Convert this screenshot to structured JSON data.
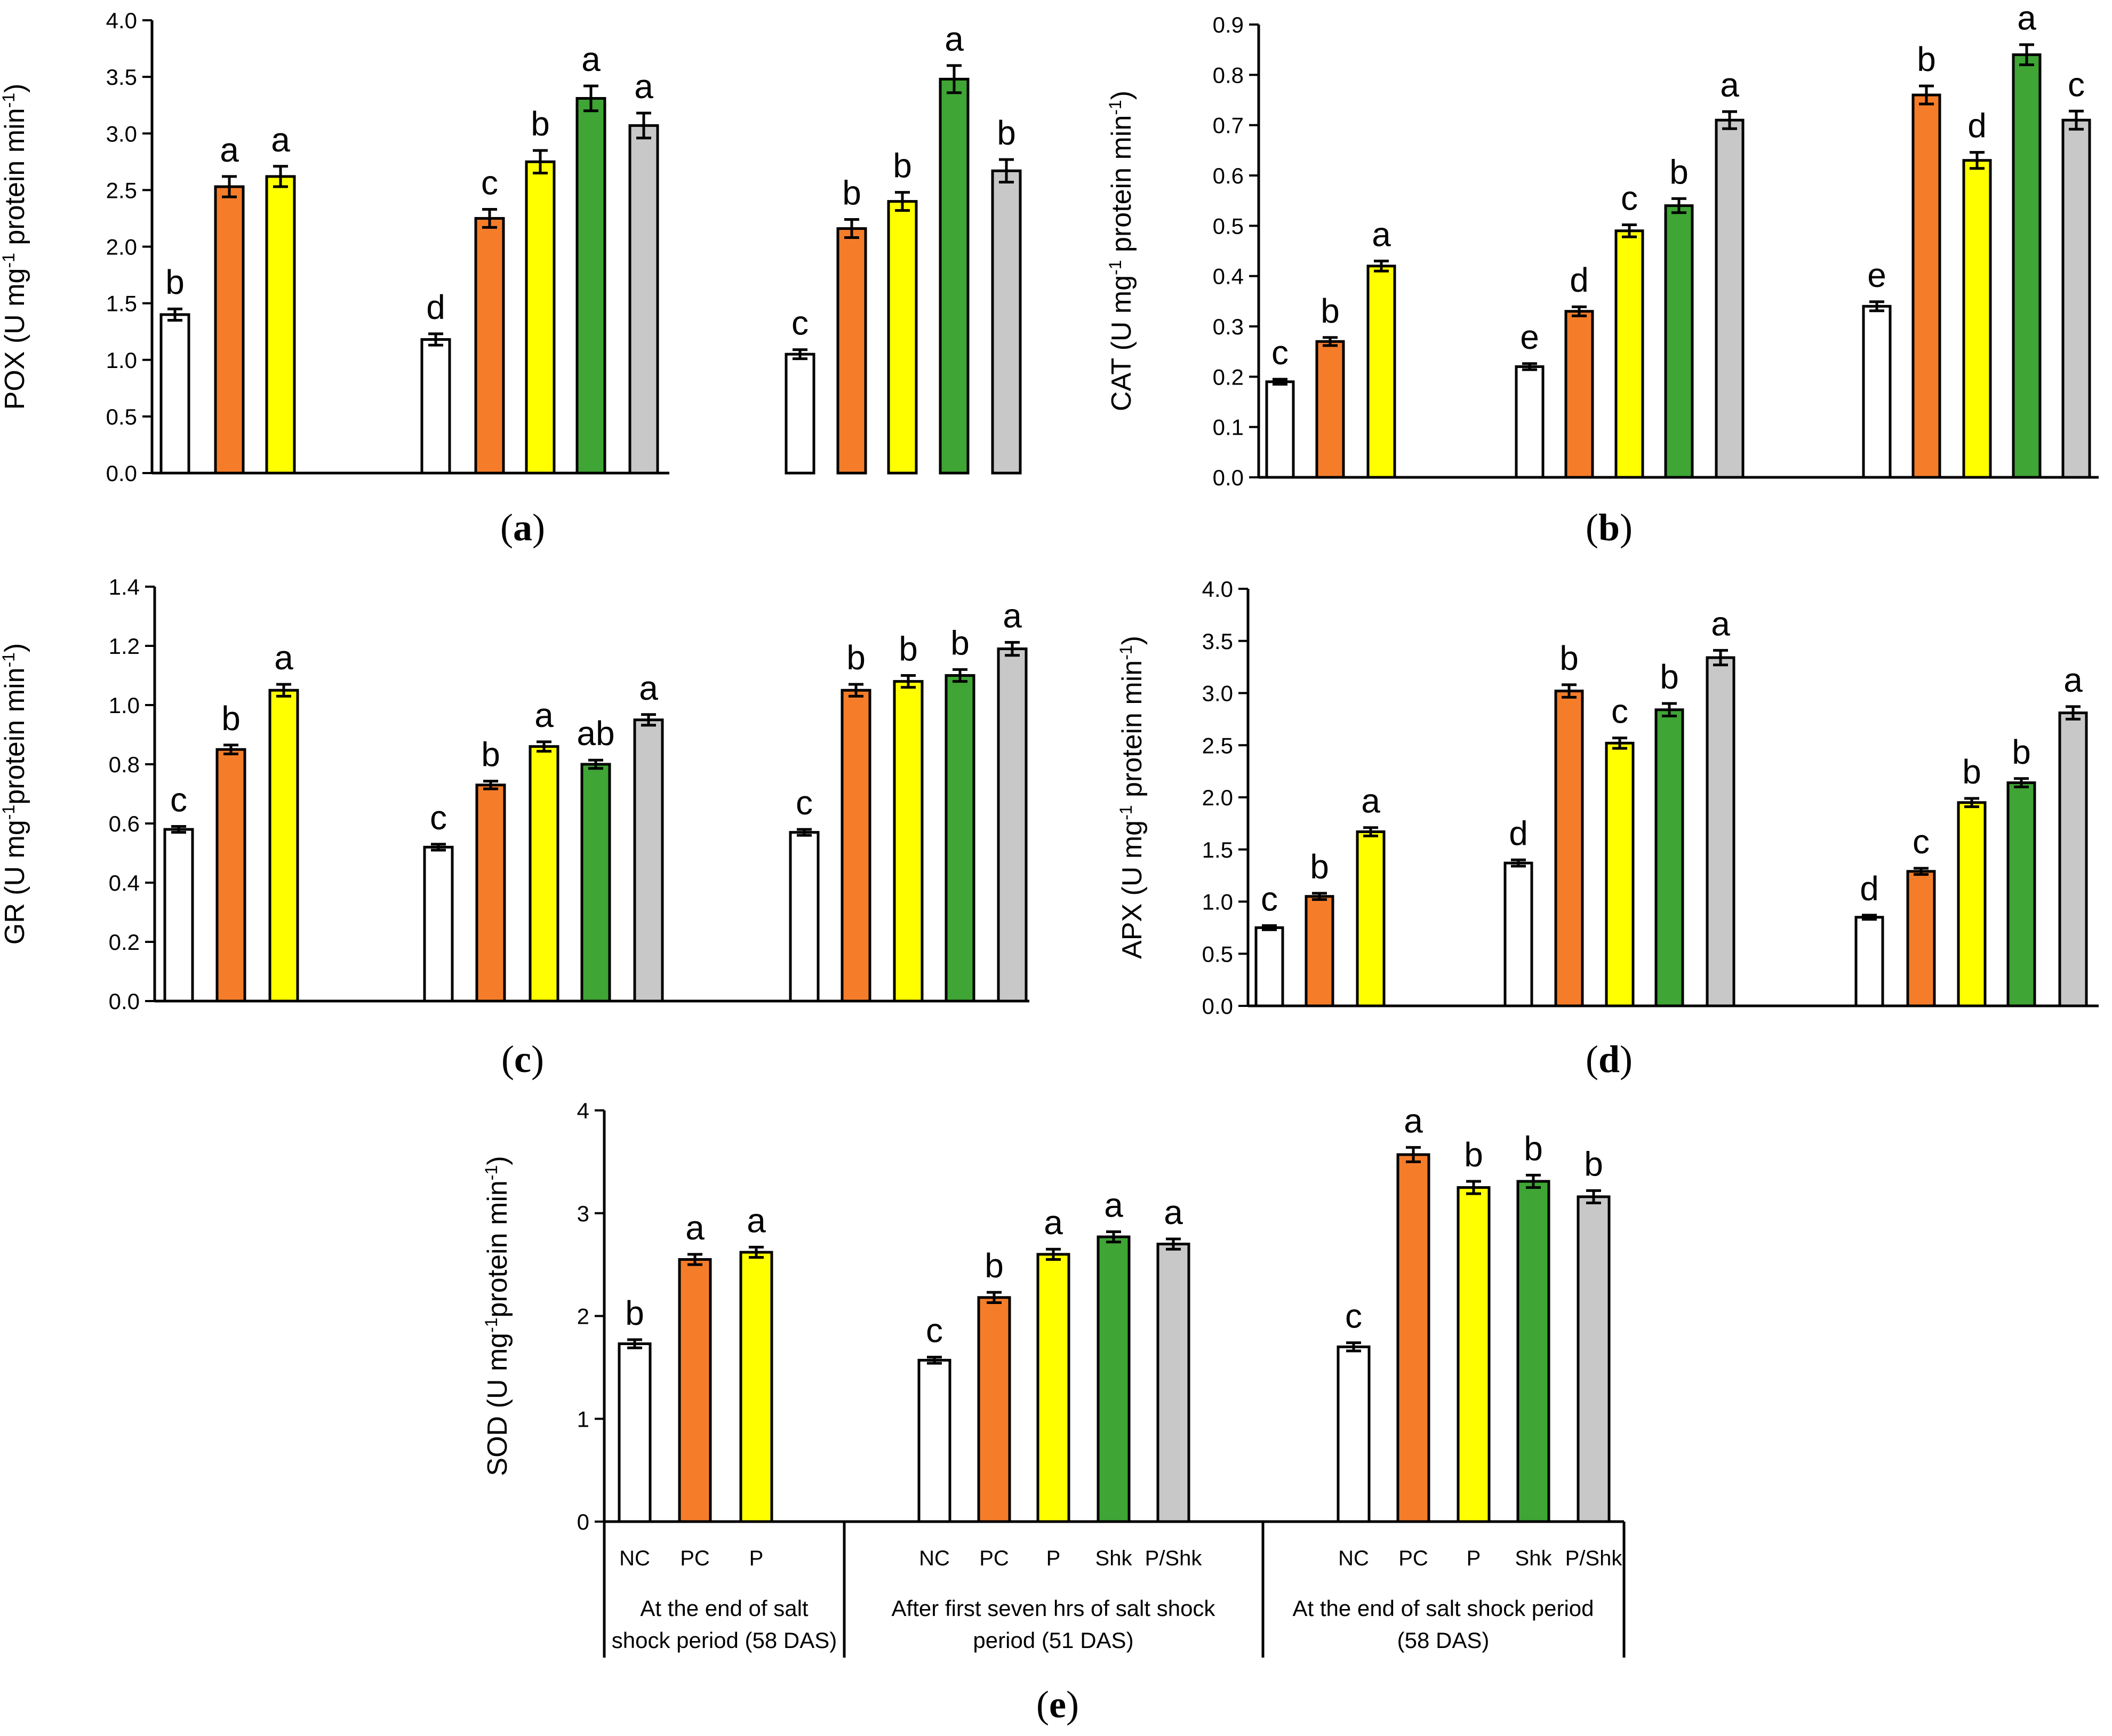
{
  "figure": {
    "treatment_colors": {
      "NC": "#ffffff",
      "PC": "#f57d2a",
      "P": "#ffff00",
      "Shk": "#3fa535",
      "P/Shk": "#c8c8c8"
    },
    "panel_labels": [
      "a",
      "b",
      "c",
      "d",
      "e"
    ]
  },
  "chart_data": [
    {
      "id": "a",
      "type": "bar",
      "ylabel_main": "POX (U mg",
      "ylabel_sup": "-1",
      "ylabel_tail": " protein min",
      "ylabel_sup2": "-1",
      "ylabel_end": ")",
      "ylim": [
        0,
        4.0
      ],
      "yticks": [
        "0.0",
        "0.5",
        "1.0",
        "1.5",
        "2.0",
        "2.5",
        "3.0",
        "3.5",
        "4.0"
      ],
      "ystep": 0.5,
      "groups": [
        {
          "values": [
            1.4,
            2.53,
            2.62
          ],
          "errors": [
            0.05,
            0.09,
            0.09
          ],
          "letters": [
            "b",
            "a",
            "a"
          ]
        },
        {
          "values": [
            1.18,
            2.25,
            2.75,
            3.31,
            3.07
          ],
          "errors": [
            0.05,
            0.08,
            0.1,
            0.11,
            0.11
          ],
          "letters": [
            "d",
            "c",
            "b",
            "a",
            "a"
          ]
        },
        {
          "values": [
            1.05,
            2.16,
            2.4,
            3.48,
            2.67
          ],
          "errors": [
            0.04,
            0.08,
            0.08,
            0.12,
            0.1
          ],
          "letters": [
            "c",
            "b",
            "b",
            "a",
            "b"
          ]
        }
      ]
    },
    {
      "id": "b",
      "type": "bar",
      "ylabel_main": "CAT (U mg",
      "ylabel_sup": "-1",
      "ylabel_tail": " protein min",
      "ylabel_sup2": "-1",
      "ylabel_end": ")",
      "ylim": [
        0,
        0.9
      ],
      "yticks": [
        "0.0",
        "0.1",
        "0.2",
        "0.3",
        "0.4",
        "0.5",
        "0.6",
        "0.7",
        "0.8",
        "0.9"
      ],
      "ystep": 0.1,
      "groups": [
        {
          "values": [
            0.19,
            0.27,
            0.42
          ],
          "errors": [
            0.005,
            0.008,
            0.01
          ],
          "letters": [
            "c",
            "b",
            "a"
          ]
        },
        {
          "values": [
            0.22,
            0.33,
            0.49,
            0.54,
            0.71
          ],
          "errors": [
            0.006,
            0.009,
            0.012,
            0.014,
            0.017
          ],
          "letters": [
            "e",
            "d",
            "c",
            "b",
            "a"
          ]
        },
        {
          "values": [
            0.34,
            0.76,
            0.63,
            0.84,
            0.71
          ],
          "errors": [
            0.009,
            0.018,
            0.016,
            0.02,
            0.018
          ],
          "letters": [
            "e",
            "b",
            "d",
            "a",
            "c"
          ]
        }
      ]
    },
    {
      "id": "c",
      "type": "bar",
      "ylabel_main": "GR (U mg",
      "ylabel_sup": "-1",
      "ylabel_tail": "protein min",
      "ylabel_sup2": "-1",
      "ylabel_end": ")",
      "ylim": [
        0,
        1.4
      ],
      "yticks": [
        "0.0",
        "0.2",
        "0.4",
        "0.6",
        "0.8",
        "1.0",
        "1.2",
        "1.4"
      ],
      "ystep": 0.2,
      "groups": [
        {
          "values": [
            0.58,
            0.85,
            1.05
          ],
          "errors": [
            0.01,
            0.015,
            0.02
          ],
          "letters": [
            "c",
            "b",
            "a"
          ]
        },
        {
          "values": [
            0.52,
            0.73,
            0.86,
            0.8,
            0.95
          ],
          "errors": [
            0.01,
            0.013,
            0.016,
            0.014,
            0.018
          ],
          "letters": [
            "c",
            "b",
            "a",
            "ab",
            "a"
          ]
        },
        {
          "values": [
            0.57,
            1.05,
            1.08,
            1.1,
            1.19
          ],
          "errors": [
            0.01,
            0.02,
            0.02,
            0.02,
            0.022
          ],
          "letters": [
            "c",
            "b",
            "b",
            "b",
            "a"
          ]
        }
      ]
    },
    {
      "id": "d",
      "type": "bar",
      "ylabel_main": "APX (U mg",
      "ylabel_sup": "-1",
      "ylabel_tail": " protein min",
      "ylabel_sup2": "-1",
      "ylabel_end": ")",
      "ylim": [
        0,
        4.0
      ],
      "yticks": [
        "0.0",
        "0.5",
        "1.0",
        "1.5",
        "2.0",
        "2.5",
        "3.0",
        "3.5",
        "4.0"
      ],
      "ystep": 0.5,
      "groups": [
        {
          "values": [
            0.75,
            1.05,
            1.67
          ],
          "errors": [
            0.02,
            0.03,
            0.04
          ],
          "letters": [
            "c",
            "b",
            "a"
          ]
        },
        {
          "values": [
            1.37,
            3.02,
            2.52,
            2.84,
            3.34
          ],
          "errors": [
            0.03,
            0.06,
            0.05,
            0.06,
            0.07
          ],
          "letters": [
            "d",
            "b",
            "c",
            "b",
            "a"
          ]
        },
        {
          "values": [
            0.85,
            1.29,
            1.95,
            2.14,
            2.81
          ],
          "errors": [
            0.02,
            0.03,
            0.04,
            0.04,
            0.06
          ],
          "letters": [
            "d",
            "c",
            "b",
            "b",
            "a"
          ]
        }
      ]
    },
    {
      "id": "e",
      "type": "bar",
      "ylabel_main": "SOD (U mg",
      "ylabel_sup": "-1",
      "ylabel_tail": "protein min",
      "ylabel_sup2": "-1",
      "ylabel_end": ")",
      "ylim": [
        0,
        4
      ],
      "yticks": [
        "0",
        "1",
        "2",
        "3",
        "4"
      ],
      "ystep": 1,
      "groups": [
        {
          "values": [
            1.73,
            2.55,
            2.62
          ],
          "errors": [
            0.04,
            0.05,
            0.05
          ],
          "letters": [
            "b",
            "a",
            "a"
          ]
        },
        {
          "values": [
            1.57,
            2.18,
            2.6,
            2.77,
            2.7
          ],
          "errors": [
            0.03,
            0.05,
            0.05,
            0.05,
            0.05
          ],
          "letters": [
            "c",
            "b",
            "a",
            "a",
            "a"
          ]
        },
        {
          "values": [
            1.7,
            3.57,
            3.25,
            3.31,
            3.16
          ],
          "errors": [
            0.04,
            0.07,
            0.06,
            0.06,
            0.06
          ],
          "letters": [
            "c",
            "a",
            "b",
            "b",
            "b"
          ]
        }
      ],
      "category_labels": [
        [
          "NC",
          "PC",
          "P"
        ],
        [
          "NC",
          "PC",
          "P",
          "Shk",
          "P/Shk"
        ],
        [
          "NC",
          "PC",
          "P",
          "Shk",
          "P/Shk"
        ]
      ],
      "group_labels": [
        [
          "At the end of salt",
          "shock period (58 DAS)"
        ],
        [
          "After first seven hrs of salt shock",
          "period (51 DAS)"
        ],
        [
          "At the end of salt shock period",
          "(58 DAS)"
        ]
      ]
    }
  ]
}
